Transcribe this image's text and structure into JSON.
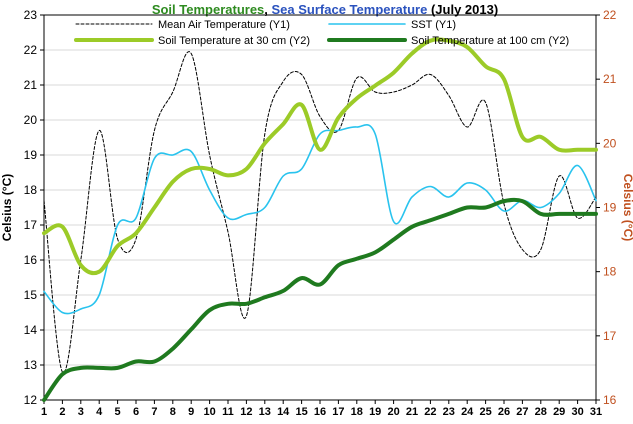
{
  "chart_data": {
    "type": "line",
    "title_parts": [
      {
        "text": "Soil Temperatures",
        "color": "#2e8b20"
      },
      {
        "text": ", ",
        "color": "#000000"
      },
      {
        "text": "Sea Surface Temperature",
        "color": "#2a52be"
      },
      {
        "text": " (July 2013)",
        "color": "#000000"
      }
    ],
    "ylabel": "Celsius (°C)",
    "y2label": "Celsius (°C)",
    "y2label_color": "#c0501f",
    "ylim": [
      12,
      23
    ],
    "y2lim": [
      16,
      22
    ],
    "yticks": [
      "12",
      "13",
      "14",
      "15",
      "16",
      "17",
      "18",
      "19",
      "20",
      "21",
      "22",
      "23"
    ],
    "y2ticks": [
      "16",
      "17",
      "18",
      "19",
      "20",
      "21",
      "22"
    ],
    "xlim": [
      1,
      31
    ],
    "xticks": [
      "1",
      "2",
      "3",
      "4",
      "5",
      "6",
      "7",
      "8",
      "9",
      "10",
      "11",
      "12",
      "13",
      "14",
      "15",
      "16",
      "17",
      "18",
      "19",
      "20",
      "21",
      "22",
      "23",
      "24",
      "25",
      "26",
      "27",
      "28",
      "29",
      "30",
      "31"
    ],
    "grid": true,
    "legend": "top",
    "series": [
      {
        "name": "Mean Air Temperature (Y1)",
        "axis": "y1",
        "color": "#000000",
        "dash": true,
        "x": [
          1,
          2,
          3,
          4,
          5,
          6,
          7,
          8,
          9,
          10,
          11,
          12,
          13,
          14,
          15,
          16,
          17,
          18,
          19,
          20,
          21,
          22,
          23,
          24,
          25,
          26,
          27,
          28,
          29,
          30,
          31
        ],
        "values": [
          17.7,
          12.8,
          16.0,
          19.7,
          16.6,
          16.6,
          19.7,
          20.8,
          21.9,
          19.0,
          16.8,
          14.4,
          19.6,
          21.1,
          21.3,
          20.1,
          19.7,
          21.2,
          20.8,
          20.8,
          21.0,
          21.3,
          20.7,
          19.8,
          20.5,
          17.6,
          16.3,
          16.3,
          18.4,
          17.2,
          17.8
        ]
      },
      {
        "name": "SST (Y1)",
        "axis": "y1",
        "color": "#29c3ee",
        "dash": false,
        "x": [
          1,
          2,
          3,
          4,
          5,
          6,
          7,
          8,
          9,
          10,
          11,
          12,
          13,
          14,
          15,
          16,
          17,
          18,
          19,
          20,
          21,
          22,
          23,
          24,
          25,
          26,
          27,
          28,
          29,
          30,
          31
        ],
        "values": [
          15.1,
          14.5,
          14.6,
          15.0,
          17.0,
          17.2,
          18.9,
          19.0,
          19.1,
          18.0,
          17.2,
          17.3,
          17.5,
          18.4,
          18.6,
          19.6,
          19.7,
          19.8,
          19.6,
          17.1,
          17.8,
          18.1,
          17.8,
          18.2,
          18.0,
          17.4,
          17.7,
          17.5,
          17.9,
          18.7,
          17.7
        ]
      },
      {
        "name": "Soil Temperature at 30 cm (Y2)",
        "axis": "y2",
        "color": "#9ccb28",
        "dash": false,
        "x": [
          1,
          2,
          3,
          4,
          5,
          6,
          7,
          8,
          9,
          10,
          11,
          12,
          13,
          14,
          15,
          16,
          17,
          18,
          19,
          20,
          21,
          22,
          23,
          24,
          25,
          26,
          27,
          28,
          29,
          30,
          31
        ],
        "values": [
          18.6,
          18.7,
          18.1,
          18.0,
          18.4,
          18.6,
          19.0,
          19.4,
          19.6,
          19.6,
          19.5,
          19.6,
          20.0,
          20.3,
          20.6,
          19.9,
          20.4,
          20.7,
          20.9,
          21.1,
          21.4,
          21.6,
          21.6,
          21.5,
          21.2,
          21.0,
          20.1,
          20.1,
          19.9,
          19.9,
          19.9
        ]
      },
      {
        "name": "Soil Temperature at 100 cm (Y2)",
        "axis": "y2",
        "color": "#1f7a1f",
        "dash": false,
        "x": [
          1,
          2,
          3,
          4,
          5,
          6,
          7,
          8,
          9,
          10,
          11,
          12,
          13,
          14,
          15,
          16,
          17,
          18,
          19,
          20,
          21,
          22,
          23,
          24,
          25,
          26,
          27,
          28,
          29,
          30,
          31
        ],
        "values": [
          16.0,
          16.4,
          16.5,
          16.5,
          16.5,
          16.6,
          16.6,
          16.8,
          17.1,
          17.4,
          17.5,
          17.5,
          17.6,
          17.7,
          17.9,
          17.8,
          18.1,
          18.2,
          18.3,
          18.5,
          18.7,
          18.8,
          18.9,
          19.0,
          19.0,
          19.1,
          19.1,
          18.9,
          18.9,
          18.9,
          18.9
        ]
      }
    ]
  }
}
